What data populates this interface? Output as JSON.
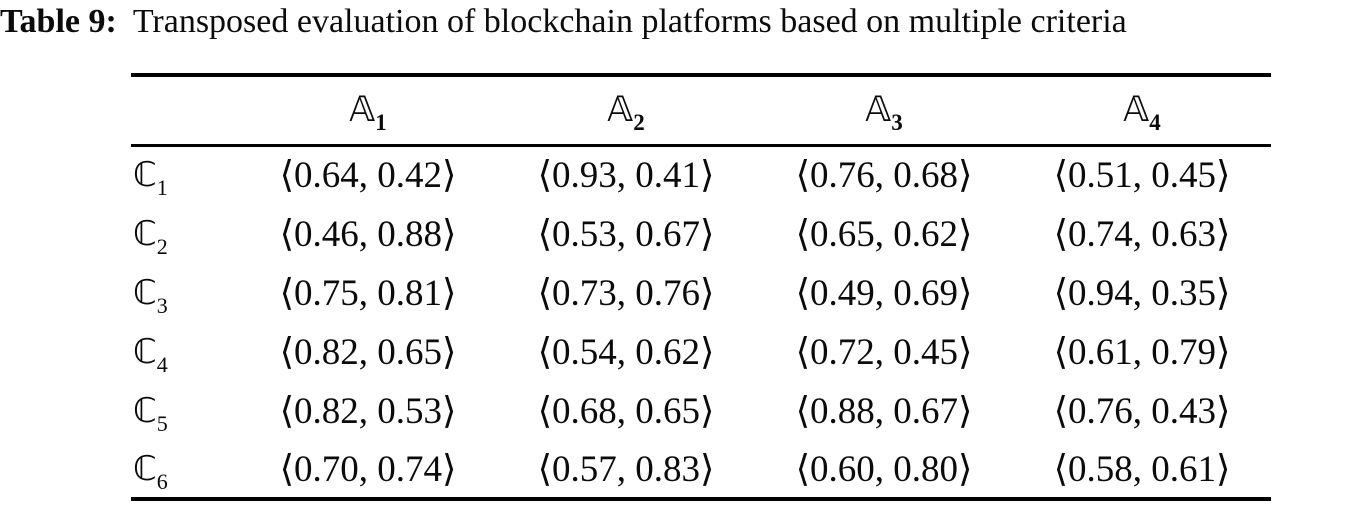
{
  "caption": {
    "label": "Table 9:",
    "text": "Transposed evaluation of blockchain platforms based on multiple criteria"
  },
  "table": {
    "columns": [
      {
        "symbol": "𝔸",
        "subscript": "1"
      },
      {
        "symbol": "𝔸",
        "subscript": "2"
      },
      {
        "symbol": "𝔸",
        "subscript": "3"
      },
      {
        "symbol": "𝔸",
        "subscript": "4"
      }
    ],
    "rows": [
      {
        "symbol": "ℂ",
        "subscript": "1",
        "cells": [
          "⟨0.64, 0.42⟩",
          "⟨0.93, 0.41⟩",
          "⟨0.76, 0.68⟩",
          "⟨0.51, 0.45⟩"
        ]
      },
      {
        "symbol": "ℂ",
        "subscript": "2",
        "cells": [
          "⟨0.46, 0.88⟩",
          "⟨0.53, 0.67⟩",
          "⟨0.65, 0.62⟩",
          "⟨0.74, 0.63⟩"
        ]
      },
      {
        "symbol": "ℂ",
        "subscript": "3",
        "cells": [
          "⟨0.75, 0.81⟩",
          "⟨0.73, 0.76⟩",
          "⟨0.49, 0.69⟩",
          "⟨0.94, 0.35⟩"
        ]
      },
      {
        "symbol": "ℂ",
        "subscript": "4",
        "cells": [
          "⟨0.82, 0.65⟩",
          "⟨0.54, 0.62⟩",
          "⟨0.72, 0.45⟩",
          "⟨0.61, 0.79⟩"
        ]
      },
      {
        "symbol": "ℂ",
        "subscript": "5",
        "cells": [
          "⟨0.82, 0.53⟩",
          "⟨0.68, 0.65⟩",
          "⟨0.88, 0.67⟩",
          "⟨0.76, 0.43⟩"
        ]
      },
      {
        "symbol": "ℂ",
        "subscript": "6",
        "cells": [
          "⟨0.70, 0.74⟩",
          "⟨0.57, 0.83⟩",
          "⟨0.60, 0.80⟩",
          "⟨0.58, 0.61⟩"
        ]
      }
    ]
  }
}
